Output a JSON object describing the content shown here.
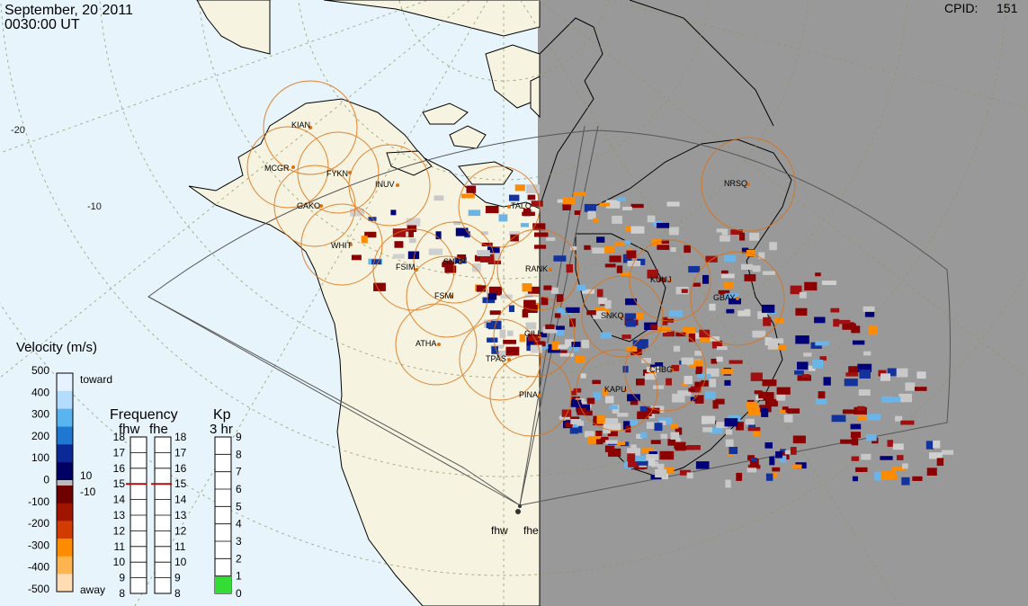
{
  "header": {
    "date": "September, 20 2011",
    "time": "0030:00 UT",
    "cpid_label": "CPID:",
    "cpid_value": "151"
  },
  "stations": [
    {
      "code": "KIAN"
    },
    {
      "code": "MCGR"
    },
    {
      "code": "FYKN"
    },
    {
      "code": "INUV"
    },
    {
      "code": "GAKO"
    },
    {
      "code": "WHIT"
    },
    {
      "code": "FSIM"
    },
    {
      "code": "SNAP"
    },
    {
      "code": "FSMI"
    },
    {
      "code": "RANK"
    },
    {
      "code": "TALO"
    },
    {
      "code": "NRSQ"
    },
    {
      "code": "KUUJ"
    },
    {
      "code": "GBAY"
    },
    {
      "code": "SNKQ"
    },
    {
      "code": "GILL"
    },
    {
      "code": "ATHA"
    },
    {
      "code": "TPAS"
    },
    {
      "code": "CHBG"
    },
    {
      "code": "PINA"
    },
    {
      "code": "KAPU"
    }
  ],
  "radars": [
    {
      "code": "fhw"
    },
    {
      "code": "fhe"
    }
  ],
  "velocity_scale": {
    "title": "Velocity (m/s)",
    "ticks": [
      "500",
      "400",
      "300",
      "200",
      "100",
      "0",
      "-100",
      "-200",
      "-300",
      "-400",
      "-500"
    ],
    "toward_label": "toward",
    "away_label": "away",
    "ground_pos": "10",
    "ground_neg": "-10",
    "colors": [
      "#e6f2ff",
      "#b4dcff",
      "#5ab4f0",
      "#1e78d2",
      "#0a2896",
      "#000064",
      "#6e0000",
      "#a01400",
      "#d23c00",
      "#ff8c00",
      "#ffb450",
      "#ffdcb4"
    ]
  },
  "frequency_panel": {
    "title": "Frequency",
    "radar_labels": [
      "fhw",
      "fhe"
    ],
    "ticks": [
      "18",
      "17",
      "16",
      "15",
      "14",
      "13",
      "12",
      "11",
      "10",
      "9",
      "8"
    ],
    "fhw_value": 15,
    "fhe_value": 15
  },
  "kp_panel": {
    "title": "Kp",
    "subtitle": "3 hr",
    "ticks": [
      "9",
      "8",
      "7",
      "6",
      "5",
      "4",
      "3",
      "2",
      "1",
      "0"
    ],
    "value": 1,
    "fill_color": "#33dd33"
  }
}
